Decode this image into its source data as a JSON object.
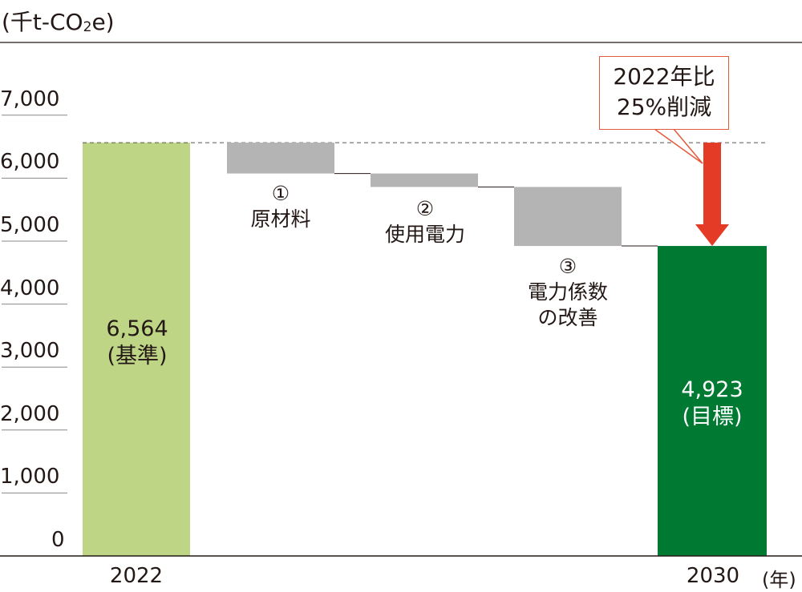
{
  "unit_label": {
    "prefix": "(千t-CO",
    "sub": "2",
    "suffix": "e)"
  },
  "colors": {
    "base_bar": "#bdd585",
    "target_bar": "#007a33",
    "reduction_bar": "#b4b4b4",
    "arrow": "#e33b26",
    "callout_border": "#e25a3c",
    "axis": "#231815",
    "grid_tick": "#888888"
  },
  "callout": {
    "line1": "2022年比",
    "line2": "25%削減"
  },
  "chart_data": {
    "type": "waterfall",
    "yaxis": {
      "min": 0,
      "max": 7000,
      "ticks": [
        "0",
        "1,000",
        "2,000",
        "3,000",
        "4,000",
        "5,000",
        "6,000",
        "7,000"
      ]
    },
    "x_labels": {
      "start": "2022",
      "end": "2030",
      "unit": "(年)"
    },
    "base": {
      "category": "2022",
      "value": 6564,
      "label": "6,564",
      "sublabel": "(基準)"
    },
    "reductions": [
      {
        "marker": "①",
        "name_lines": [
          "原材料"
        ],
        "from": 6564,
        "to": 6074
      },
      {
        "marker": "②",
        "name_lines": [
          "使用電力"
        ],
        "from": 6074,
        "to": 5860
      },
      {
        "marker": "③",
        "name_lines": [
          "電力係数",
          "の改善"
        ],
        "from": 5860,
        "to": 4923
      }
    ],
    "target": {
      "category": "2030",
      "value": 4923,
      "label": "4,923",
      "sublabel": "(目標)"
    },
    "reduction_percent": 25
  }
}
